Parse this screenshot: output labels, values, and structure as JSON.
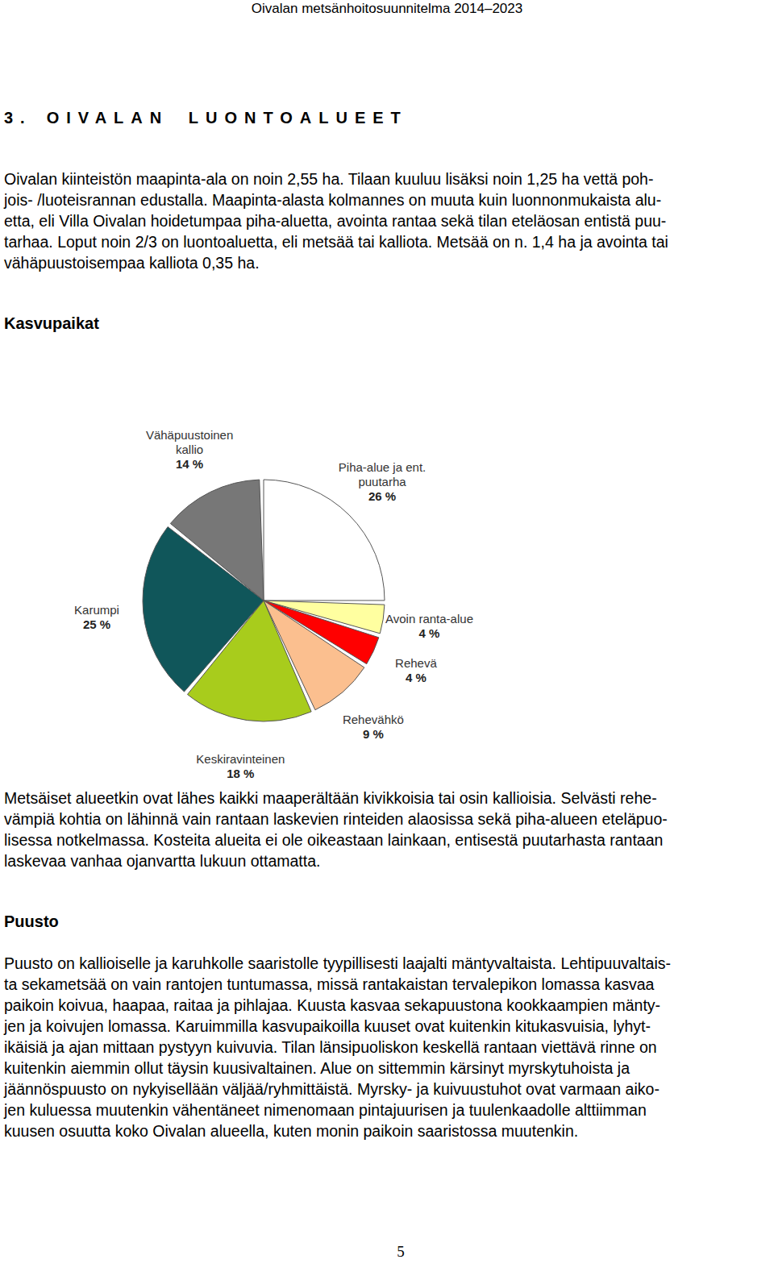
{
  "header": "Oivalan metsänhoitosuunnitelma 2014–2023",
  "section": {
    "number": "3.",
    "title": "OIVALAN LUONTOALUEET"
  },
  "text_1": [
    "Oivalan kiinteistön maapinta-ala on noin 2,55 ha. Tilaan kuuluu lisäksi noin 1,25 ha vettä poh-",
    "jois- /luoteisrannan edustalla. Maapinta-alasta kolmannes on muuta kuin luonnonmukaista alu-",
    "etta, eli Villa Oivalan hoidetumpaa piha-aluetta, avointa rantaa sekä tilan eteläosan entistä puu-",
    "tarhaa. Loput noin 2/3 on luontoaluetta, eli metsää tai kalliota. Metsää on n. 1,4 ha ja avointa tai",
    "vähäpuustoisempaa kalliota 0,35 ha."
  ],
  "heading_1": "Kasvupaikat",
  "chart_data": {
    "type": "pie",
    "categories": [
      "Piha-alue ja ent. puutarha",
      "Avoin ranta-alue",
      "Rehevä",
      "Rehevähkö",
      "Keskiravinteinen",
      "Karumpi",
      "Vähäpuustoinen kallio"
    ],
    "values": [
      26,
      4,
      4,
      9,
      18,
      25,
      14
    ],
    "value_labels": [
      "26 %",
      "4 %",
      "4 %",
      "9 %",
      "18 %",
      "25 %",
      "14 %"
    ],
    "colors": [
      "#ffffff",
      "#ffffa0",
      "#ff0000",
      "#fbbf8f",
      "#a8cc1c",
      "#10565a",
      "#777777"
    ],
    "data_labels": true
  },
  "text_2": [
    "Metsäiset alueetkin ovat lähes kaikki maaperältään kivikkoisia tai osin kallioisia. Selvästi rehe-",
    "vämpiä kohtia on lähinnä vain rantaan laskevien rinteiden alaosissa sekä piha-alueen eteläpuo-",
    "lisessa notkelmassa. Kosteita alueita ei ole oikeastaan lainkaan, entisestä puutarhasta rantaan",
    "laskevaa vanhaa ojanvartta lukuun ottamatta."
  ],
  "heading_2": "Puusto",
  "text_3": [
    "Puusto on kallioiselle ja karuhkolle saaristolle tyypillisesti laajalti mäntyvaltaista. Lehtipuuvaltais-",
    "ta sekametsää on vain rantojen tuntumassa, missä rantakaistan tervalepikon lomassa kasvaa",
    "paikoin koivua, haapaa, raitaa ja pihlajaa. Kuusta kasvaa sekapuustona kookkaampien mänty-",
    "jen ja koivujen lomassa. Karuimmilla kasvupaikoilla kuuset ovat kuitenkin kitukasvuisia, lyhyt-",
    "ikäisiä ja ajan mittaan pystyyn kuivuvia. Tilan länsipuoliskon keskellä rantaan viettävä rinne on",
    "kuitenkin aiemmin ollut täysin kuusivaltainen. Alue on sittemmin kärsinyt myrskytuhoista ja",
    "jäännöspuusto on nykyisellään väljää/ryhmittäistä. Myrsky- ja kuivuustuhot ovat varmaan aiko-",
    "jen kuluessa muutenkin vähentäneet nimenomaan pintajuurisen ja tuulenkaadolle alttiimman",
    "kuusen osuutta koko Oivalan alueella, kuten monin paikoin saaristossa muutenkin."
  ],
  "page_number": "5"
}
